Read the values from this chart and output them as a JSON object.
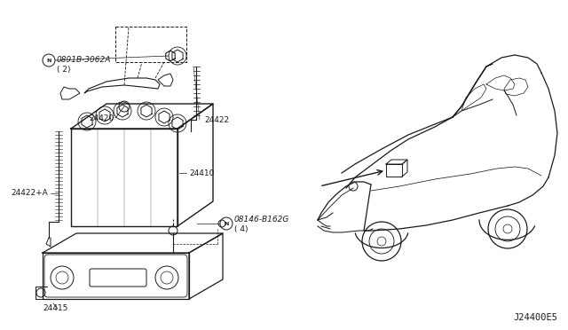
{
  "bg_color": "#ffffff",
  "line_color": "#1a1a1a",
  "diagram_id": "J24400E5",
  "font_size": 6.5,
  "diagram_font_size": 7.5,
  "label_N0891B": "N0891B-3062A\n( 2)",
  "label_24420": "24420",
  "label_24422": "24422",
  "label_24410": "24410",
  "label_24422A": "24422+A",
  "label_N08146": "N08146-B162G\n( 4)",
  "label_24415": "24415"
}
